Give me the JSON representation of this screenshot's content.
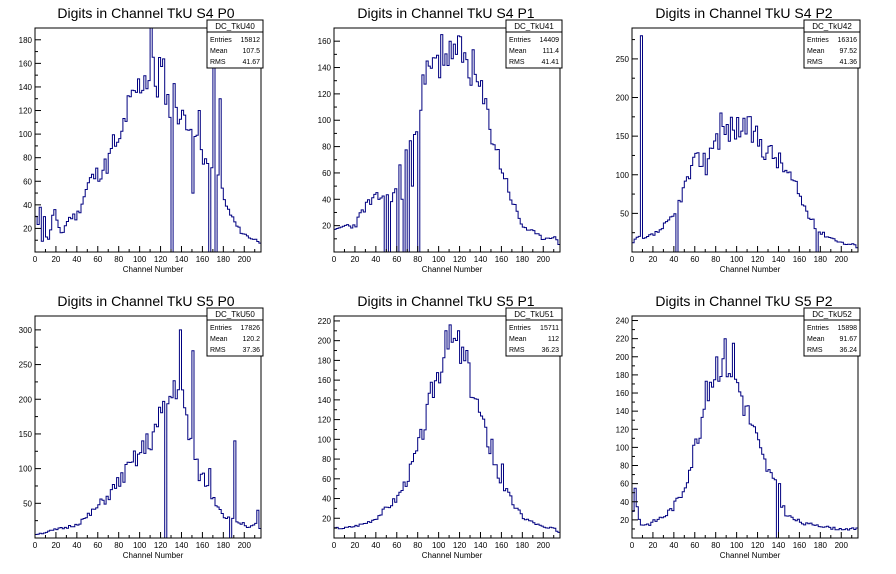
{
  "colors": {
    "histogram": "#000080",
    "frame": "#000000",
    "background": "#ffffff"
  },
  "stats_labels": {
    "entries": "Entries",
    "mean": "Mean",
    "rms": "RMS"
  },
  "chart_data": [
    {
      "type": "bar",
      "title": "Digits in Channel TkU S4 P0",
      "xlabel": "Channel Number",
      "xlim": [
        0,
        216
      ],
      "ylim": [
        0,
        190
      ],
      "xticks": [
        "0",
        "20",
        "40",
        "60",
        "80",
        "100",
        "120",
        "140",
        "160",
        "180",
        "200"
      ],
      "yticks": [
        "20",
        "40",
        "60",
        "80",
        "100",
        "120",
        "140",
        "160",
        "180"
      ],
      "stats": {
        "name": "DC_TkU40",
        "entries": "15812",
        "mean": "107.5",
        "rms": "41.67"
      },
      "profile": [
        [
          0,
          25
        ],
        [
          2,
          30
        ],
        [
          6,
          8
        ],
        [
          10,
          15
        ],
        [
          14,
          10
        ],
        [
          18,
          40
        ],
        [
          22,
          20
        ],
        [
          26,
          15
        ],
        [
          30,
          25
        ],
        [
          34,
          30
        ],
        [
          40,
          30
        ],
        [
          46,
          45
        ],
        [
          52,
          60
        ],
        [
          58,
          65
        ],
        [
          64,
          70
        ],
        [
          70,
          75
        ],
        [
          76,
          95
        ],
        [
          80,
          85
        ],
        [
          84,
          105
        ],
        [
          88,
          120
        ],
        [
          92,
          125
        ],
        [
          96,
          135
        ],
        [
          100,
          140
        ],
        [
          104,
          150
        ],
        [
          108,
          148
        ],
        [
          112,
          155
        ],
        [
          116,
          140
        ],
        [
          120,
          150
        ],
        [
          124,
          148
        ],
        [
          128,
          120
        ],
        [
          132,
          135
        ],
        [
          136,
          125
        ],
        [
          140,
          110
        ],
        [
          146,
          118
        ],
        [
          152,
          100
        ],
        [
          158,
          90
        ],
        [
          164,
          75
        ],
        [
          170,
          80
        ],
        [
          176,
          60
        ],
        [
          182,
          40
        ],
        [
          188,
          30
        ],
        [
          194,
          20
        ],
        [
          200,
          15
        ],
        [
          206,
          12
        ],
        [
          212,
          10
        ],
        [
          216,
          8
        ]
      ],
      "spikes": [
        [
          4,
          38
        ],
        [
          9,
          30
        ],
        [
          111,
          190
        ],
        [
          118,
          165
        ],
        [
          130,
          0
        ],
        [
          150,
          50
        ],
        [
          156,
          120
        ],
        [
          166,
          0
        ],
        [
          170,
          170
        ],
        [
          172,
          0
        ],
        [
          176,
          130
        ]
      ],
      "seed": 11,
      "noise": 0.12
    },
    {
      "type": "bar",
      "title": "Digits in Channel TkU S4 P1",
      "xlabel": "Channel Number",
      "xlim": [
        0,
        216
      ],
      "ylim": [
        0,
        170
      ],
      "xticks": [
        "0",
        "20",
        "40",
        "60",
        "80",
        "100",
        "120",
        "140",
        "160",
        "180",
        "200"
      ],
      "yticks": [
        "20",
        "40",
        "60",
        "80",
        "100",
        "120",
        "140",
        "160"
      ],
      "stats": {
        "name": "DC_TkU41",
        "entries": "14409",
        "mean": "111.4",
        "rms": "41.41"
      },
      "profile": [
        [
          0,
          15
        ],
        [
          10,
          20
        ],
        [
          20,
          20
        ],
        [
          30,
          35
        ],
        [
          40,
          40
        ],
        [
          50,
          45
        ],
        [
          56,
          35
        ],
        [
          60,
          55
        ],
        [
          66,
          70
        ],
        [
          72,
          80
        ],
        [
          78,
          100
        ],
        [
          84,
          120
        ],
        [
          90,
          135
        ],
        [
          96,
          140
        ],
        [
          102,
          145
        ],
        [
          108,
          150
        ],
        [
          114,
          155
        ],
        [
          120,
          150
        ],
        [
          126,
          145
        ],
        [
          132,
          140
        ],
        [
          140,
          120
        ],
        [
          148,
          100
        ],
        [
          156,
          75
        ],
        [
          164,
          55
        ],
        [
          172,
          35
        ],
        [
          180,
          20
        ],
        [
          190,
          15
        ],
        [
          200,
          10
        ],
        [
          210,
          12
        ],
        [
          216,
          5
        ]
      ],
      "spikes": [
        [
          48,
          0
        ],
        [
          52,
          0
        ],
        [
          56,
          45
        ],
        [
          60,
          0
        ],
        [
          64,
          40
        ],
        [
          66,
          0
        ],
        [
          70,
          0
        ],
        [
          74,
          50
        ],
        [
          80,
          0
        ],
        [
          103,
          165
        ],
        [
          110,
          160
        ],
        [
          116,
          150
        ]
      ],
      "seed": 23,
      "noise": 0.12
    },
    {
      "type": "bar",
      "title": "Digits in Channel TkU S4 P2",
      "xlabel": "Channel Number",
      "xlim": [
        0,
        216
      ],
      "ylim": [
        0,
        290
      ],
      "xticks": [
        "0",
        "20",
        "40",
        "60",
        "80",
        "100",
        "120",
        "140",
        "160",
        "180",
        "200"
      ],
      "yticks": [
        "50",
        "100",
        "150",
        "200",
        "250"
      ],
      "stats": {
        "name": "DC_TkU42",
        "entries": "16316",
        "mean": "97.52",
        "rms": "41.36"
      },
      "profile": [
        [
          0,
          10
        ],
        [
          6,
          20
        ],
        [
          10,
          15
        ],
        [
          16,
          20
        ],
        [
          24,
          25
        ],
        [
          32,
          35
        ],
        [
          40,
          45
        ],
        [
          46,
          70
        ],
        [
          52,
          90
        ],
        [
          58,
          110
        ],
        [
          64,
          120
        ],
        [
          70,
          125
        ],
        [
          76,
          140
        ],
        [
          82,
          150
        ],
        [
          88,
          155
        ],
        [
          94,
          160
        ],
        [
          100,
          160
        ],
        [
          106,
          165
        ],
        [
          112,
          160
        ],
        [
          118,
          150
        ],
        [
          124,
          140
        ],
        [
          130,
          130
        ],
        [
          136,
          125
        ],
        [
          142,
          115
        ],
        [
          150,
          100
        ],
        [
          158,
          80
        ],
        [
          166,
          55
        ],
        [
          172,
          40
        ],
        [
          180,
          25
        ],
        [
          188,
          20
        ],
        [
          196,
          15
        ],
        [
          204,
          10
        ],
        [
          212,
          10
        ],
        [
          216,
          5
        ]
      ],
      "spikes": [
        [
          8,
          280
        ],
        [
          42,
          0
        ],
        [
          70,
          0
        ],
        [
          71,
          100
        ],
        [
          84,
          180
        ],
        [
          110,
          175
        ],
        [
          176,
          0
        ]
      ],
      "seed": 37,
      "noise": 0.12
    },
    {
      "type": "bar",
      "title": "Digits in Channel TkU S5 P0",
      "xlabel": "Channel Number",
      "xlim": [
        0,
        216
      ],
      "ylim": [
        0,
        320
      ],
      "xticks": [
        "0",
        "20",
        "40",
        "60",
        "80",
        "100",
        "120",
        "140",
        "160",
        "180",
        "200"
      ],
      "yticks": [
        "50",
        "100",
        "150",
        "200",
        "250",
        "300"
      ],
      "stats": {
        "name": "DC_TkU50",
        "entries": "17826",
        "mean": "120.2",
        "rms": "37.36"
      },
      "profile": [
        [
          0,
          5
        ],
        [
          10,
          8
        ],
        [
          20,
          12
        ],
        [
          30,
          15
        ],
        [
          40,
          20
        ],
        [
          50,
          30
        ],
        [
          60,
          45
        ],
        [
          70,
          60
        ],
        [
          80,
          80
        ],
        [
          90,
          100
        ],
        [
          100,
          120
        ],
        [
          110,
          140
        ],
        [
          120,
          170
        ],
        [
          126,
          190
        ],
        [
          132,
          210
        ],
        [
          136,
          230
        ],
        [
          140,
          200
        ],
        [
          146,
          160
        ],
        [
          152,
          110
        ],
        [
          158,
          90
        ],
        [
          164,
          80
        ],
        [
          170,
          60
        ],
        [
          176,
          45
        ],
        [
          182,
          30
        ],
        [
          190,
          25
        ],
        [
          200,
          20
        ],
        [
          206,
          15
        ],
        [
          212,
          20
        ],
        [
          216,
          10
        ]
      ],
      "spikes": [
        [
          124,
          0
        ],
        [
          138,
          300
        ],
        [
          150,
          270
        ],
        [
          166,
          100
        ],
        [
          186,
          0
        ],
        [
          190,
          140
        ],
        [
          212,
          40
        ],
        [
          216,
          0
        ]
      ],
      "seed": 51,
      "noise": 0.14
    },
    {
      "type": "bar",
      "title": "Digits in Channel TkU S5 P1",
      "xlabel": "Channel Number",
      "xlim": [
        0,
        216
      ],
      "ylim": [
        0,
        225
      ],
      "xticks": [
        "0",
        "20",
        "40",
        "60",
        "80",
        "100",
        "120",
        "140",
        "160",
        "180",
        "200"
      ],
      "yticks": [
        "20",
        "40",
        "60",
        "80",
        "100",
        "120",
        "140",
        "160",
        "180",
        "200",
        "220"
      ],
      "stats": {
        "name": "DC_TkU51",
        "entries": "15711",
        "mean": "112",
        "rms": "36.23"
      },
      "profile": [
        [
          0,
          10
        ],
        [
          10,
          10
        ],
        [
          20,
          12
        ],
        [
          30,
          15
        ],
        [
          40,
          20
        ],
        [
          50,
          30
        ],
        [
          60,
          40
        ],
        [
          70,
          60
        ],
        [
          80,
          90
        ],
        [
          88,
          120
        ],
        [
          94,
          150
        ],
        [
          100,
          170
        ],
        [
          106,
          190
        ],
        [
          112,
          200
        ],
        [
          118,
          195
        ],
        [
          124,
          180
        ],
        [
          130,
          160
        ],
        [
          136,
          140
        ],
        [
          142,
          115
        ],
        [
          150,
          90
        ],
        [
          158,
          60
        ],
        [
          166,
          45
        ],
        [
          174,
          30
        ],
        [
          182,
          20
        ],
        [
          192,
          15
        ],
        [
          202,
          10
        ],
        [
          210,
          10
        ],
        [
          216,
          5
        ]
      ],
      "spikes": [
        [
          106,
          210
        ],
        [
          118,
          210
        ],
        [
          126,
          190
        ],
        [
          150,
          100
        ],
        [
          160,
          75
        ]
      ],
      "seed": 67,
      "noise": 0.1
    },
    {
      "type": "bar",
      "title": "Digits in Channel TkU S5 P2",
      "xlabel": "Channel Number",
      "xlim": [
        0,
        216
      ],
      "ylim": [
        0,
        245
      ],
      "xticks": [
        "0",
        "20",
        "40",
        "60",
        "80",
        "100",
        "120",
        "140",
        "160",
        "180",
        "200"
      ],
      "yticks": [
        "20",
        "40",
        "60",
        "80",
        "100",
        "120",
        "140",
        "160",
        "180",
        "200",
        "220",
        "240"
      ],
      "stats": {
        "name": "DC_TkU52",
        "entries": "15898",
        "mean": "91.67",
        "rms": "36.24"
      },
      "profile": [
        [
          0,
          30
        ],
        [
          4,
          40
        ],
        [
          8,
          15
        ],
        [
          16,
          15
        ],
        [
          24,
          20
        ],
        [
          32,
          25
        ],
        [
          40,
          35
        ],
        [
          48,
          50
        ],
        [
          56,
          80
        ],
        [
          62,
          110
        ],
        [
          68,
          140
        ],
        [
          74,
          170
        ],
        [
          80,
          190
        ],
        [
          86,
          200
        ],
        [
          92,
          195
        ],
        [
          98,
          180
        ],
        [
          104,
          160
        ],
        [
          110,
          140
        ],
        [
          116,
          120
        ],
        [
          124,
          90
        ],
        [
          132,
          70
        ],
        [
          138,
          55
        ],
        [
          142,
          40
        ],
        [
          148,
          25
        ],
        [
          156,
          20
        ],
        [
          166,
          15
        ],
        [
          176,
          15
        ],
        [
          186,
          12
        ],
        [
          196,
          10
        ],
        [
          206,
          10
        ],
        [
          216,
          10
        ]
      ],
      "spikes": [
        [
          2,
          55
        ],
        [
          88,
          220
        ],
        [
          96,
          215
        ],
        [
          138,
          0
        ],
        [
          140,
          60
        ]
      ],
      "seed": 83,
      "noise": 0.12
    }
  ]
}
